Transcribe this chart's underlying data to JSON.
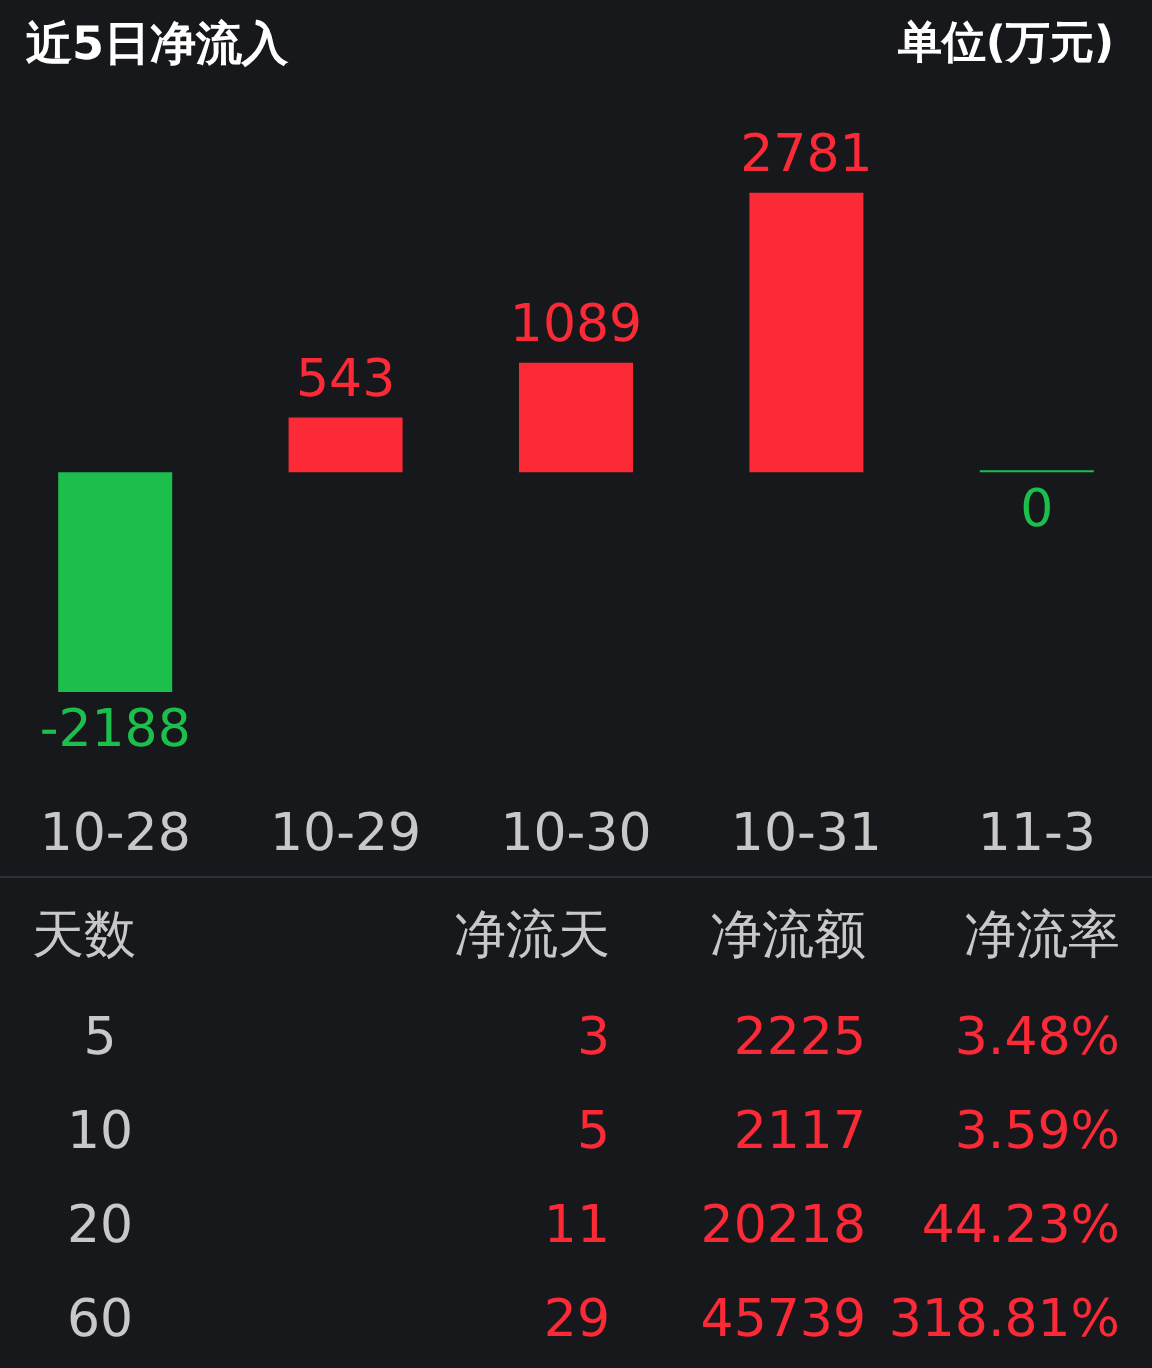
{
  "chart_data": [
    {
      "type": "bar",
      "title": "近5日净流入",
      "subtitle": "单位(万元)",
      "categories": [
        "10-28",
        "10-29",
        "10-30",
        "10-31",
        "11-3"
      ],
      "values": [
        -2188,
        543,
        1089,
        2781,
        0
      ],
      "colors": [
        "#1cbf4c",
        "#fc2a36",
        "#fc2a36",
        "#fc2a36",
        "#1cbf4c"
      ],
      "data_labels": true
    },
    {
      "type": "other",
      "categories": [
        "天数",
        "净流天",
        "净流额",
        "净流率"
      ],
      "annotations": [
        "5",
        "3",
        "2225",
        "3.48%",
        "10",
        "5",
        "2117",
        "3.59%",
        "20",
        "11",
        "20218",
        "44.23%",
        "60",
        "29",
        "45739",
        "318.81%"
      ]
    }
  ]
}
